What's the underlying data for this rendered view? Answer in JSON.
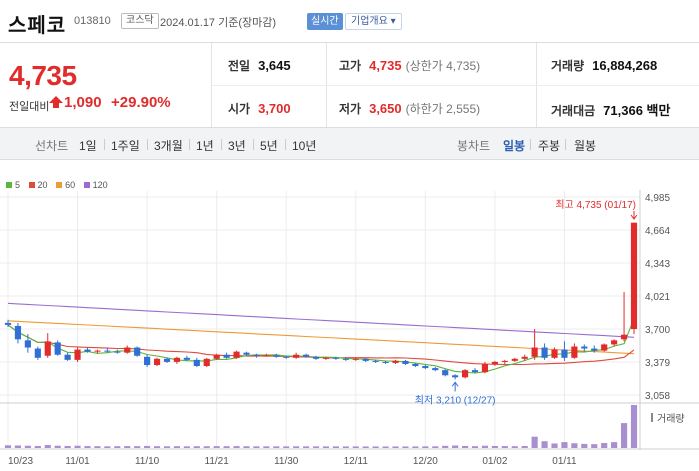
{
  "header": {
    "name": "스페코",
    "code": "013810",
    "market": "코스닥",
    "date_text": "2024.01.17 기준(장마감)",
    "realtime_label": "실시간",
    "overview_label": "기업개요 ▾"
  },
  "summary": {
    "price": "4,735",
    "change_label": "전일대비",
    "change_value": "1,090",
    "change_rate": "+29.90%",
    "prev_close_label": "전일",
    "prev_close": "3,645",
    "high_label": "고가",
    "high": "4,735",
    "high_note": "(상한가 4,735)",
    "volume_label": "거래량",
    "volume": "16,884,268",
    "open_label": "시가",
    "open": "3,700",
    "low_label": "저가",
    "low": "3,650",
    "low_note": "(하한가 2,555)",
    "amount_label": "거래대금",
    "amount": "71,366 백만"
  },
  "period_bar": {
    "line_chart_label": "선차트",
    "line_periods": [
      "1일",
      "1주일",
      "3개월",
      "1년",
      "3년",
      "5년",
      "10년"
    ],
    "candle_chart_label": "봉차트",
    "candle_periods": [
      "일봉",
      "주봉",
      "월봉"
    ],
    "active_candle": "일봉"
  },
  "colors": {
    "up": "#e22b2b",
    "down": "#2f6fd6",
    "ma5": "#5bb53e",
    "ma20": "#e04a3f",
    "ma60": "#ef9a34",
    "ma120": "#9b6ccf",
    "volume": "#a88fd0"
  },
  "chart_data": {
    "type": "candlestick",
    "legend": [
      {
        "name": "5",
        "color": "#5bb53e"
      },
      {
        "name": "20",
        "color": "#e04a3f"
      },
      {
        "name": "60",
        "color": "#ef9a34"
      },
      {
        "name": "120",
        "color": "#9b6ccf"
      }
    ],
    "y_ticks": [
      "4,985",
      "4,664",
      "4,343",
      "4,021",
      "3,700",
      "3,379",
      "3,058"
    ],
    "ylim": [
      3058,
      4985
    ],
    "x_ticks": [
      "10/23",
      "11/01",
      "11/10",
      "11/21",
      "11/30",
      "12/11",
      "12/20",
      "01/02",
      "01/11"
    ],
    "x_tick_index": [
      0,
      7,
      14,
      21,
      28,
      35,
      42,
      49,
      56
    ],
    "annotations": {
      "high": "최고 4,735 (01/17)",
      "low": "최저 3,210 (12/27)"
    },
    "volume_label": "거래량",
    "candles": [
      {
        "o": 3760,
        "h": 3790,
        "l": 3720,
        "c": 3740
      },
      {
        "o": 3730,
        "h": 3760,
        "l": 3560,
        "c": 3600
      },
      {
        "o": 3590,
        "h": 3650,
        "l": 3470,
        "c": 3520
      },
      {
        "o": 3510,
        "h": 3530,
        "l": 3400,
        "c": 3420
      },
      {
        "o": 3440,
        "h": 3660,
        "l": 3420,
        "c": 3580
      },
      {
        "o": 3570,
        "h": 3590,
        "l": 3440,
        "c": 3450
      },
      {
        "o": 3450,
        "h": 3470,
        "l": 3390,
        "c": 3400
      },
      {
        "o": 3400,
        "h": 3520,
        "l": 3380,
        "c": 3500
      },
      {
        "o": 3500,
        "h": 3520,
        "l": 3470,
        "c": 3480
      },
      {
        "o": 3480,
        "h": 3500,
        "l": 3460,
        "c": 3490
      },
      {
        "o": 3490,
        "h": 3520,
        "l": 3470,
        "c": 3480
      },
      {
        "o": 3480,
        "h": 3500,
        "l": 3460,
        "c": 3470
      },
      {
        "o": 3470,
        "h": 3540,
        "l": 3460,
        "c": 3520
      },
      {
        "o": 3520,
        "h": 3530,
        "l": 3430,
        "c": 3440
      },
      {
        "o": 3430,
        "h": 3450,
        "l": 3330,
        "c": 3350
      },
      {
        "o": 3350,
        "h": 3420,
        "l": 3340,
        "c": 3410
      },
      {
        "o": 3410,
        "h": 3420,
        "l": 3370,
        "c": 3380
      },
      {
        "o": 3380,
        "h": 3430,
        "l": 3360,
        "c": 3420
      },
      {
        "o": 3420,
        "h": 3440,
        "l": 3390,
        "c": 3400
      },
      {
        "o": 3400,
        "h": 3420,
        "l": 3330,
        "c": 3340
      },
      {
        "o": 3340,
        "h": 3420,
        "l": 3330,
        "c": 3410
      },
      {
        "o": 3410,
        "h": 3460,
        "l": 3400,
        "c": 3450
      },
      {
        "o": 3450,
        "h": 3470,
        "l": 3410,
        "c": 3420
      },
      {
        "o": 3420,
        "h": 3490,
        "l": 3410,
        "c": 3480
      },
      {
        "o": 3470,
        "h": 3480,
        "l": 3440,
        "c": 3450
      },
      {
        "o": 3450,
        "h": 3460,
        "l": 3420,
        "c": 3440
      },
      {
        "o": 3440,
        "h": 3460,
        "l": 3430,
        "c": 3445
      },
      {
        "o": 3445,
        "h": 3460,
        "l": 3420,
        "c": 3430
      },
      {
        "o": 3430,
        "h": 3440,
        "l": 3410,
        "c": 3420
      },
      {
        "o": 3420,
        "h": 3470,
        "l": 3410,
        "c": 3450
      },
      {
        "o": 3450,
        "h": 3460,
        "l": 3420,
        "c": 3430
      },
      {
        "o": 3430,
        "h": 3440,
        "l": 3400,
        "c": 3410
      },
      {
        "o": 3410,
        "h": 3430,
        "l": 3400,
        "c": 3420
      },
      {
        "o": 3420,
        "h": 3430,
        "l": 3400,
        "c": 3410
      },
      {
        "o": 3410,
        "h": 3420,
        "l": 3390,
        "c": 3400
      },
      {
        "o": 3400,
        "h": 3420,
        "l": 3390,
        "c": 3410
      },
      {
        "o": 3410,
        "h": 3420,
        "l": 3380,
        "c": 3390
      },
      {
        "o": 3390,
        "h": 3400,
        "l": 3370,
        "c": 3380
      },
      {
        "o": 3380,
        "h": 3390,
        "l": 3360,
        "c": 3370
      },
      {
        "o": 3370,
        "h": 3400,
        "l": 3360,
        "c": 3390
      },
      {
        "o": 3390,
        "h": 3400,
        "l": 3350,
        "c": 3360
      },
      {
        "o": 3360,
        "h": 3370,
        "l": 3330,
        "c": 3340
      },
      {
        "o": 3340,
        "h": 3350,
        "l": 3310,
        "c": 3320
      },
      {
        "o": 3320,
        "h": 3330,
        "l": 3290,
        "c": 3300
      },
      {
        "o": 3300,
        "h": 3310,
        "l": 3240,
        "c": 3250
      },
      {
        "o": 3250,
        "h": 3260,
        "l": 3210,
        "c": 3230
      },
      {
        "o": 3230,
        "h": 3310,
        "l": 3220,
        "c": 3300
      },
      {
        "o": 3300,
        "h": 3320,
        "l": 3270,
        "c": 3280
      },
      {
        "o": 3280,
        "h": 3380,
        "l": 3270,
        "c": 3360
      },
      {
        "o": 3360,
        "h": 3390,
        "l": 3340,
        "c": 3380
      },
      {
        "o": 3380,
        "h": 3400,
        "l": 3360,
        "c": 3390
      },
      {
        "o": 3390,
        "h": 3420,
        "l": 3380,
        "c": 3410
      },
      {
        "o": 3410,
        "h": 3450,
        "l": 3390,
        "c": 3430
      },
      {
        "o": 3430,
        "h": 3700,
        "l": 3400,
        "c": 3520
      },
      {
        "o": 3520,
        "h": 3560,
        "l": 3400,
        "c": 3420
      },
      {
        "o": 3420,
        "h": 3520,
        "l": 3410,
        "c": 3500
      },
      {
        "o": 3500,
        "h": 3580,
        "l": 3390,
        "c": 3420
      },
      {
        "o": 3420,
        "h": 3560,
        "l": 3410,
        "c": 3530
      },
      {
        "o": 3530,
        "h": 3550,
        "l": 3480,
        "c": 3510
      },
      {
        "o": 3510,
        "h": 3540,
        "l": 3470,
        "c": 3490
      },
      {
        "o": 3490,
        "h": 3560,
        "l": 3480,
        "c": 3550
      },
      {
        "o": 3550,
        "h": 3600,
        "l": 3530,
        "c": 3590
      },
      {
        "o": 3600,
        "h": 4060,
        "l": 3580,
        "c": 3645
      },
      {
        "o": 3700,
        "h": 4735,
        "l": 3650,
        "c": 4735
      }
    ],
    "volume": [
      120,
      110,
      100,
      90,
      130,
      100,
      90,
      100,
      85,
      80,
      75,
      80,
      85,
      80,
      90,
      80,
      75,
      80,
      75,
      80,
      78,
      82,
      80,
      85,
      78,
      75,
      74,
      73,
      72,
      75,
      73,
      72,
      71,
      72,
      70,
      70,
      69,
      68,
      67,
      70,
      68,
      70,
      72,
      75,
      95,
      110,
      90,
      80,
      100,
      90,
      85,
      80,
      88,
      500,
      300,
      200,
      260,
      210,
      180,
      170,
      220,
      260,
      1100,
      1900
    ]
  }
}
